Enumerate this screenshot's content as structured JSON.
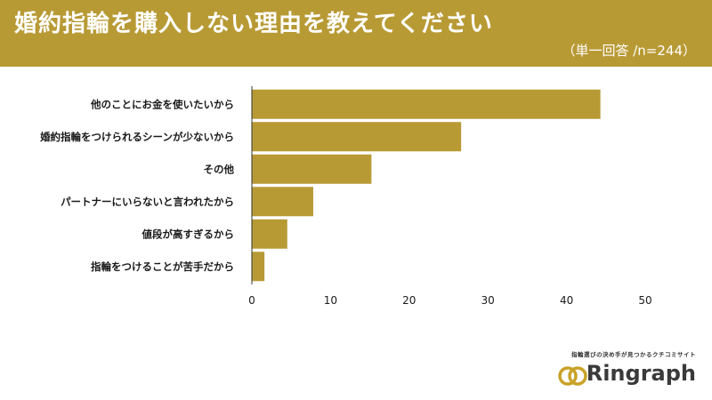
{
  "header": {
    "title": "婚約指輪を購入しない理由を教えてください",
    "subtitle": "（単一回答 /n=244）"
  },
  "brand": {
    "tagline": "指輪選びの決め手が見つかるクチコミサイト",
    "name": "Ringraph",
    "accent_color": "#c9a227"
  },
  "chart_data": {
    "type": "bar",
    "orientation": "horizontal",
    "categories": [
      "他のことにお金を使いたいから",
      "婚約指輪をつけられるシーンが少ないから",
      "その他",
      "パートナーにいらないと言われたから",
      "値段が高すぎるから",
      "指輪をつけることが苦手だから"
    ],
    "values": [
      44.3,
      26.6,
      15.2,
      7.8,
      4.5,
      1.6
    ],
    "xlim": [
      0,
      50
    ],
    "xticks": [
      0,
      10,
      20,
      30,
      40,
      50
    ],
    "bar_color": "#b89a35",
    "grid": false
  }
}
